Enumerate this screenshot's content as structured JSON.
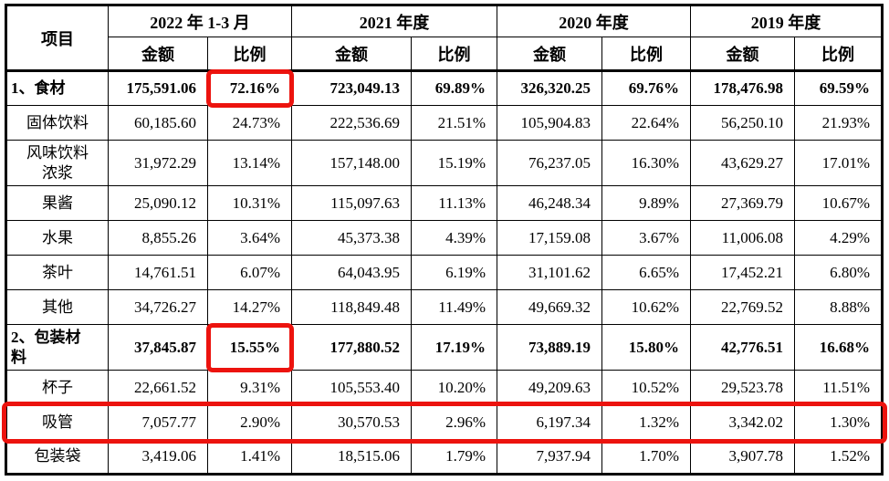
{
  "table": {
    "item_header": "项目",
    "col_groups": [
      {
        "label": "2022 年 1-3 月",
        "sub": [
          "金额",
          "比例"
        ]
      },
      {
        "label": "2021 年度",
        "sub": [
          "金额",
          "比例"
        ]
      },
      {
        "label": "2020 年度",
        "sub": [
          "金额",
          "比例"
        ]
      },
      {
        "label": "2019 年度",
        "sub": [
          "金额",
          "比例"
        ]
      }
    ],
    "rows": [
      {
        "label": "1、食材",
        "values": [
          "175,591.06",
          "72.16%",
          "723,049.13",
          "69.89%",
          "326,320.25",
          "69.76%",
          "178,476.98",
          "69.59%"
        ]
      },
      {
        "label": "固体饮料",
        "values": [
          "60,185.60",
          "24.73%",
          "222,536.69",
          "21.51%",
          "105,904.83",
          "22.64%",
          "56,250.10",
          "21.93%"
        ]
      },
      {
        "label": "风味饮料\n浓浆",
        "values": [
          "31,972.29",
          "13.14%",
          "157,148.00",
          "15.19%",
          "76,237.05",
          "16.30%",
          "43,629.27",
          "17.01%"
        ]
      },
      {
        "label": "果酱",
        "values": [
          "25,090.12",
          "10.31%",
          "115,097.63",
          "11.13%",
          "46,248.34",
          "9.89%",
          "27,369.79",
          "10.67%"
        ]
      },
      {
        "label": "水果",
        "values": [
          "8,855.26",
          "3.64%",
          "45,373.38",
          "4.39%",
          "17,159.08",
          "3.67%",
          "11,006.08",
          "4.29%"
        ]
      },
      {
        "label": "茶叶",
        "values": [
          "14,761.51",
          "6.07%",
          "64,043.95",
          "6.19%",
          "31,101.62",
          "6.65%",
          "17,452.21",
          "6.80%"
        ]
      },
      {
        "label": "其他",
        "values": [
          "34,726.27",
          "14.27%",
          "118,849.48",
          "11.49%",
          "49,669.32",
          "10.62%",
          "22,769.52",
          "8.88%"
        ]
      },
      {
        "label": "2、包装材\n料",
        "values": [
          "37,845.87",
          "15.55%",
          "177,880.52",
          "17.19%",
          "73,889.19",
          "15.80%",
          "42,776.51",
          "16.68%"
        ]
      },
      {
        "label": "杯子",
        "values": [
          "22,661.52",
          "9.31%",
          "105,553.40",
          "10.20%",
          "49,209.63",
          "10.52%",
          "29,523.78",
          "11.51%"
        ]
      },
      {
        "label": "吸管",
        "values": [
          "7,057.77",
          "2.90%",
          "30,570.53",
          "2.96%",
          "6,197.34",
          "1.32%",
          "3,342.02",
          "1.30%"
        ]
      },
      {
        "label": "包装袋",
        "values": [
          "3,419.06",
          "1.41%",
          "18,515.06",
          "1.79%",
          "7,937.94",
          "1.70%",
          "3,907.78",
          "1.52%"
        ]
      }
    ]
  },
  "annotations": {
    "highlight_color": "#ec130e",
    "cell_highlights": [
      {
        "row": 0,
        "col": 1
      },
      {
        "row": 7,
        "col": 1
      }
    ],
    "row_highlights": [
      9
    ]
  }
}
